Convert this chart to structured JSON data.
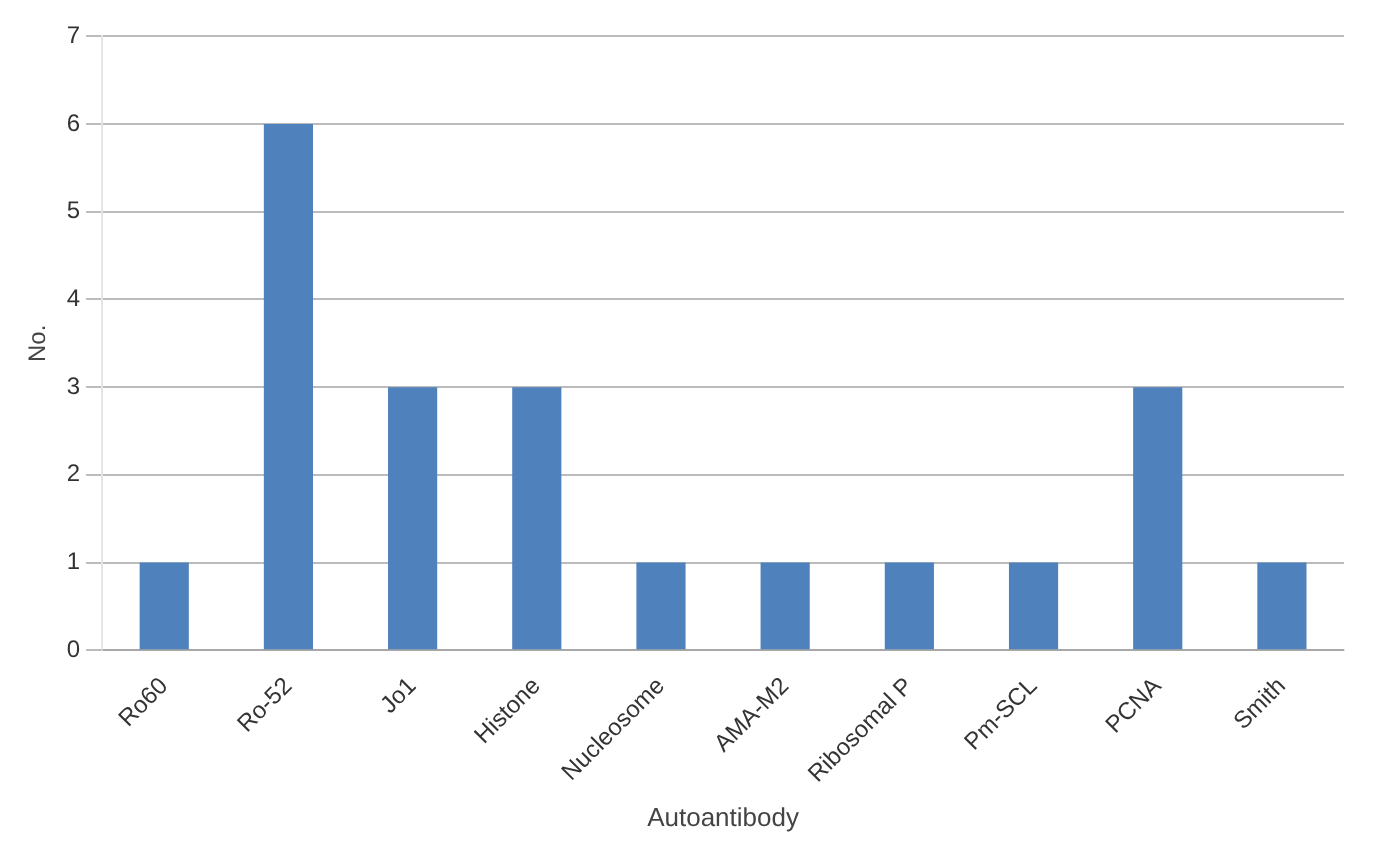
{
  "chart_data": {
    "type": "bar",
    "xlabel": "Autoantibody",
    "ylabel": "No.",
    "categories": [
      "Ro60",
      "Ro-52",
      "Jo1",
      "Histone",
      "Nucleosome",
      "AMA-M2",
      "Ribosomal P",
      "Pm-SCL",
      "PCNA",
      "Smith"
    ],
    "values": [
      1,
      6,
      3,
      3,
      1,
      1,
      1,
      1,
      3,
      1
    ],
    "color": "#4f81bd",
    "ylim": [
      0,
      7
    ],
    "yticks": [
      0,
      1,
      2,
      3,
      4,
      5,
      6,
      7
    ],
    "grid": "y",
    "legend": false
  }
}
